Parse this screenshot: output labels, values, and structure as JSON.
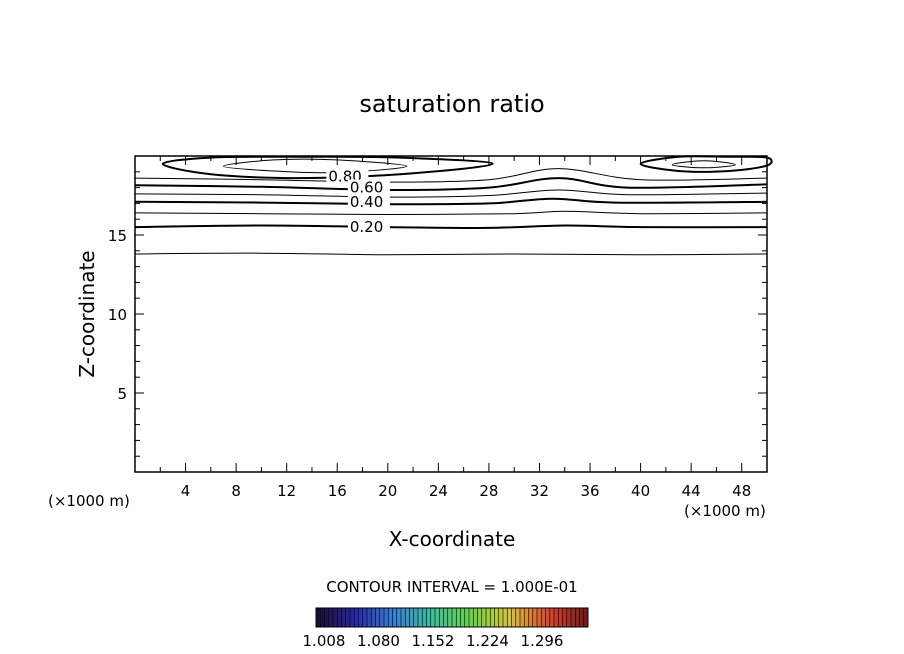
{
  "chart_data": {
    "type": "contour",
    "title": "saturation ratio",
    "xlabel": "X-coordinate",
    "ylabel": "Z-coordinate",
    "x_unit_left": "(×1000 m)",
    "x_unit_right": "(×1000 m)",
    "xlim": [
      0,
      50
    ],
    "ylim": [
      0,
      20
    ],
    "x_ticks": [
      4,
      8,
      12,
      16,
      20,
      24,
      28,
      32,
      36,
      40,
      44,
      48
    ],
    "x_tick_labels": [
      "4",
      "8",
      "12",
      "16",
      "20",
      "24",
      "28",
      "32",
      "36",
      "40",
      "44",
      "48"
    ],
    "y_ticks": [
      5,
      10,
      15
    ],
    "y_tick_labels": [
      "5",
      "10",
      "15"
    ],
    "contour_interval_text": "CONTOUR INTERVAL = 1.000E-01",
    "contour_labels": [
      {
        "text": "0.80",
        "x": 15.3,
        "z": 18.7
      },
      {
        "text": "0.60",
        "x": 17.0,
        "z": 18.0
      },
      {
        "text": "0.40",
        "x": 17.0,
        "z": 17.1
      },
      {
        "text": "0.20",
        "x": 17.0,
        "z": 15.5
      }
    ],
    "contours": [
      {
        "level": 0.1,
        "bold": false,
        "points": [
          [
            0,
            13.8
          ],
          [
            10,
            13.85
          ],
          [
            20,
            13.75
          ],
          [
            30,
            13.8
          ],
          [
            40,
            13.75
          ],
          [
            50,
            13.8
          ]
        ]
      },
      {
        "level": 0.2,
        "bold": true,
        "points": [
          [
            0,
            15.5
          ],
          [
            10,
            15.6
          ],
          [
            20,
            15.5
          ],
          [
            28,
            15.45
          ],
          [
            34,
            15.6
          ],
          [
            40,
            15.5
          ],
          [
            50,
            15.5
          ]
        ]
      },
      {
        "level": 0.3,
        "bold": false,
        "points": [
          [
            0,
            16.4
          ],
          [
            10,
            16.35
          ],
          [
            20,
            16.3
          ],
          [
            30,
            16.35
          ],
          [
            34,
            16.5
          ],
          [
            40,
            16.35
          ],
          [
            50,
            16.4
          ]
        ]
      },
      {
        "level": 0.4,
        "bold": true,
        "points": [
          [
            0,
            17.1
          ],
          [
            10,
            17.05
          ],
          [
            20,
            16.95
          ],
          [
            28,
            17.0
          ],
          [
            33,
            17.3
          ],
          [
            38,
            17.05
          ],
          [
            50,
            17.1
          ]
        ]
      },
      {
        "level": 0.5,
        "bold": false,
        "points": [
          [
            0,
            17.6
          ],
          [
            10,
            17.55
          ],
          [
            20,
            17.4
          ],
          [
            28,
            17.5
          ],
          [
            33.5,
            17.85
          ],
          [
            39,
            17.55
          ],
          [
            50,
            17.65
          ]
        ]
      },
      {
        "level": 0.6,
        "bold": true,
        "points": [
          [
            0,
            18.15
          ],
          [
            10,
            18.05
          ],
          [
            20,
            17.85
          ],
          [
            28,
            18.0
          ],
          [
            33.5,
            18.6
          ],
          [
            39,
            18.0
          ],
          [
            50,
            18.2
          ]
        ]
      },
      {
        "level": 0.7,
        "bold": false,
        "points": [
          [
            0,
            18.6
          ],
          [
            10,
            18.5
          ],
          [
            20,
            18.35
          ],
          [
            28,
            18.5
          ],
          [
            33.5,
            19.2
          ],
          [
            40,
            18.5
          ],
          [
            50,
            18.6
          ]
        ]
      },
      {
        "level": 0.8,
        "bold": true,
        "closed": true,
        "points": [
          [
            2.2,
            19.5
          ],
          [
            6,
            18.85
          ],
          [
            13,
            18.6
          ],
          [
            21,
            18.85
          ],
          [
            28.3,
            19.5
          ],
          [
            21,
            19.9
          ],
          [
            13,
            19.95
          ],
          [
            6,
            19.9
          ]
        ]
      },
      {
        "level": 0.9,
        "bold": false,
        "closed": true,
        "points": [
          [
            7,
            19.35
          ],
          [
            11,
            19.05
          ],
          [
            16,
            18.95
          ],
          [
            21.5,
            19.35
          ],
          [
            16,
            19.75
          ],
          [
            11,
            19.75
          ]
        ]
      },
      {
        "level": 0.8,
        "bold": true,
        "closed": true,
        "points": [
          [
            40,
            19.5
          ],
          [
            43,
            19.05
          ],
          [
            47,
            19.05
          ],
          [
            50,
            19.4
          ],
          [
            50,
            19.9
          ],
          [
            47,
            19.95
          ],
          [
            43,
            19.95
          ]
        ]
      },
      {
        "level": 0.9,
        "bold": false,
        "closed": true,
        "points": [
          [
            42.5,
            19.45
          ],
          [
            45,
            19.25
          ],
          [
            47.5,
            19.45
          ],
          [
            45,
            19.7
          ]
        ]
      }
    ],
    "colorbar": {
      "tick_labels": [
        "1.008",
        "1.080",
        "1.152",
        "1.224",
        "1.296"
      ],
      "colors": [
        "#1a1030",
        "#2b2aa8",
        "#3b7fd6",
        "#3fbf9a",
        "#6bd24a",
        "#d8c440",
        "#d84a32",
        "#7a1a1a"
      ]
    }
  }
}
